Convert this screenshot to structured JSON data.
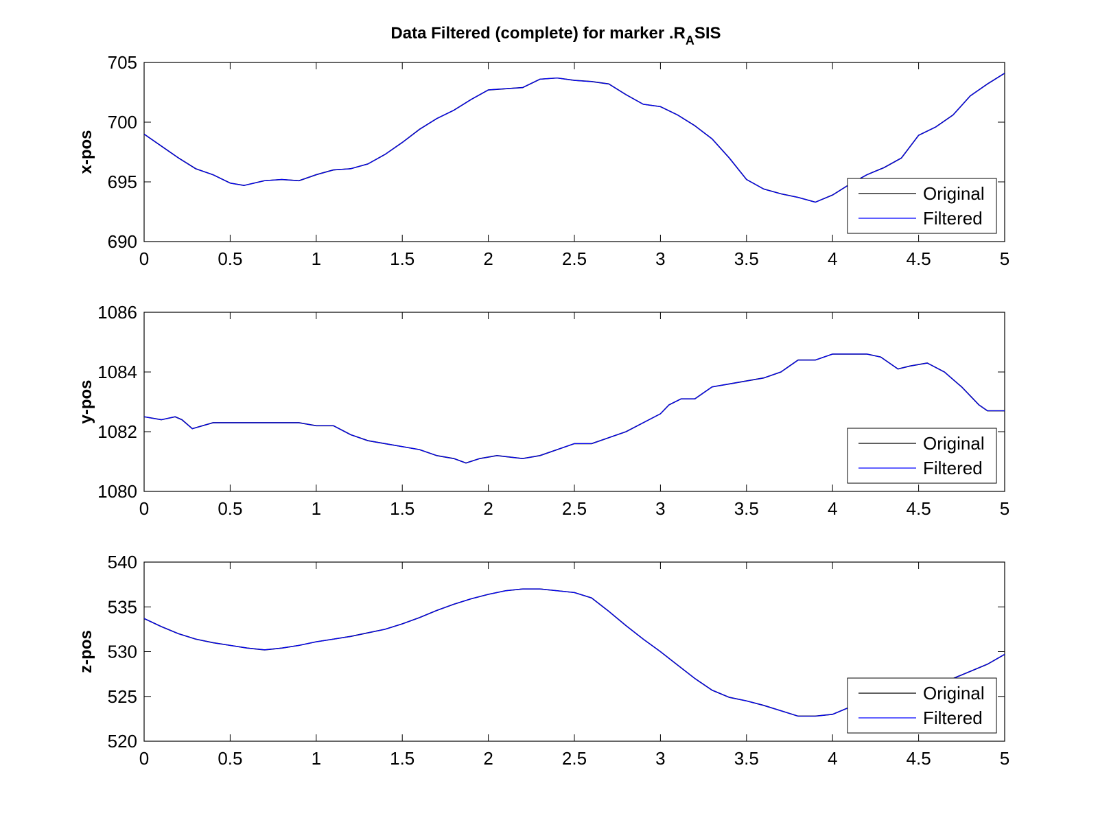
{
  "figure": {
    "title_main": "Data Filtered (complete) for marker .R",
    "title_sub": "A",
    "title_tail": "SIS"
  },
  "chart_data": [
    {
      "type": "line",
      "ylabel": "x-pos",
      "xlim": [
        0,
        5
      ],
      "ylim": [
        690,
        705
      ],
      "x_ticks": [
        0,
        0.5,
        1,
        1.5,
        2,
        2.5,
        3,
        3.5,
        4,
        4.5,
        5
      ],
      "y_ticks": [
        690,
        695,
        700,
        705
      ],
      "legend": {
        "position": "bottom-right",
        "entries": [
          "Original",
          "Filtered"
        ]
      },
      "series": [
        {
          "name": "Original",
          "color": "#000000",
          "x": [
            0,
            0.1,
            0.2,
            0.3,
            0.4,
            0.5,
            0.58,
            0.7,
            0.8,
            0.9,
            1.0,
            1.1,
            1.2,
            1.3,
            1.4,
            1.5,
            1.6,
            1.7,
            1.8,
            1.9,
            2.0,
            2.1,
            2.2,
            2.3,
            2.4,
            2.5,
            2.6,
            2.7,
            2.8,
            2.9,
            3.0,
            3.1,
            3.2,
            3.3,
            3.4,
            3.5,
            3.6,
            3.7,
            3.8,
            3.9,
            4.0,
            4.1,
            4.2,
            4.3,
            4.4,
            4.5,
            4.6,
            4.7,
            4.8,
            4.9,
            5.0
          ],
          "y": [
            699.0,
            698.0,
            697.0,
            696.1,
            695.6,
            694.9,
            694.7,
            695.1,
            695.2,
            695.1,
            695.6,
            696.0,
            696.1,
            696.5,
            697.3,
            698.3,
            699.4,
            700.3,
            701.0,
            701.9,
            702.7,
            702.8,
            702.9,
            703.6,
            703.7,
            703.5,
            703.4,
            703.2,
            702.3,
            701.5,
            701.3,
            700.6,
            699.7,
            698.6,
            697.0,
            695.2,
            694.4,
            694.0,
            693.7,
            693.3,
            693.9,
            694.8,
            695.6,
            696.2,
            697.0,
            698.9,
            699.6,
            700.6,
            702.2,
            703.2,
            704.1
          ]
        },
        {
          "name": "Filtered",
          "color": "#0000ff",
          "x": [
            0,
            0.1,
            0.2,
            0.3,
            0.4,
            0.5,
            0.58,
            0.7,
            0.8,
            0.9,
            1.0,
            1.1,
            1.2,
            1.3,
            1.4,
            1.5,
            1.6,
            1.7,
            1.8,
            1.9,
            2.0,
            2.1,
            2.2,
            2.3,
            2.4,
            2.5,
            2.6,
            2.7,
            2.8,
            2.9,
            3.0,
            3.1,
            3.2,
            3.3,
            3.4,
            3.5,
            3.6,
            3.7,
            3.8,
            3.9,
            4.0,
            4.1,
            4.2,
            4.3,
            4.4,
            4.5,
            4.6,
            4.7,
            4.8,
            4.9,
            5.0
          ],
          "y": [
            699.0,
            698.0,
            697.0,
            696.1,
            695.6,
            694.9,
            694.7,
            695.1,
            695.2,
            695.1,
            695.6,
            696.0,
            696.1,
            696.5,
            697.3,
            698.3,
            699.4,
            700.3,
            701.0,
            701.9,
            702.7,
            702.8,
            702.9,
            703.6,
            703.7,
            703.5,
            703.4,
            703.2,
            702.3,
            701.5,
            701.3,
            700.6,
            699.7,
            698.6,
            697.0,
            695.2,
            694.4,
            694.0,
            693.7,
            693.3,
            693.9,
            694.8,
            695.6,
            696.2,
            697.0,
            698.9,
            699.6,
            700.6,
            702.2,
            703.2,
            704.1
          ]
        }
      ]
    },
    {
      "type": "line",
      "ylabel": "y-pos",
      "xlim": [
        0,
        5
      ],
      "ylim": [
        1080,
        1086
      ],
      "x_ticks": [
        0,
        0.5,
        1,
        1.5,
        2,
        2.5,
        3,
        3.5,
        4,
        4.5,
        5
      ],
      "y_ticks": [
        1080,
        1082,
        1084,
        1086
      ],
      "legend": {
        "position": "bottom-right",
        "entries": [
          "Original",
          "Filtered"
        ]
      },
      "series": [
        {
          "name": "Original",
          "color": "#000000",
          "x": [
            0,
            0.1,
            0.18,
            0.22,
            0.28,
            0.4,
            0.5,
            0.6,
            0.7,
            0.8,
            0.9,
            1.0,
            1.1,
            1.2,
            1.3,
            1.4,
            1.5,
            1.6,
            1.7,
            1.8,
            1.87,
            1.95,
            2.05,
            2.2,
            2.3,
            2.4,
            2.5,
            2.6,
            2.7,
            2.8,
            2.9,
            3.0,
            3.05,
            3.12,
            3.2,
            3.3,
            3.4,
            3.5,
            3.6,
            3.7,
            3.8,
            3.9,
            4.0,
            4.1,
            4.2,
            4.28,
            4.38,
            4.45,
            4.55,
            4.65,
            4.75,
            4.85,
            4.9,
            5.0
          ],
          "y": [
            1082.5,
            1082.4,
            1082.5,
            1082.4,
            1082.1,
            1082.3,
            1082.3,
            1082.3,
            1082.3,
            1082.3,
            1082.3,
            1082.2,
            1082.2,
            1081.9,
            1081.7,
            1081.6,
            1081.5,
            1081.4,
            1081.2,
            1081.1,
            1080.95,
            1081.1,
            1081.2,
            1081.1,
            1081.2,
            1081.4,
            1081.6,
            1081.6,
            1081.8,
            1082.0,
            1082.3,
            1082.6,
            1082.9,
            1083.1,
            1083.1,
            1083.5,
            1083.6,
            1083.7,
            1083.8,
            1084.0,
            1084.4,
            1084.4,
            1084.6,
            1084.6,
            1084.6,
            1084.5,
            1084.1,
            1084.2,
            1084.3,
            1084.0,
            1083.5,
            1082.9,
            1082.7,
            1082.7
          ]
        },
        {
          "name": "Filtered",
          "color": "#0000ff",
          "x": [
            0,
            0.1,
            0.18,
            0.22,
            0.28,
            0.4,
            0.5,
            0.6,
            0.7,
            0.8,
            0.9,
            1.0,
            1.1,
            1.2,
            1.3,
            1.4,
            1.5,
            1.6,
            1.7,
            1.8,
            1.87,
            1.95,
            2.05,
            2.2,
            2.3,
            2.4,
            2.5,
            2.6,
            2.7,
            2.8,
            2.9,
            3.0,
            3.05,
            3.12,
            3.2,
            3.3,
            3.4,
            3.5,
            3.6,
            3.7,
            3.8,
            3.9,
            4.0,
            4.1,
            4.2,
            4.28,
            4.38,
            4.45,
            4.55,
            4.65,
            4.75,
            4.85,
            4.9,
            5.0
          ],
          "y": [
            1082.5,
            1082.4,
            1082.5,
            1082.4,
            1082.1,
            1082.3,
            1082.3,
            1082.3,
            1082.3,
            1082.3,
            1082.3,
            1082.2,
            1082.2,
            1081.9,
            1081.7,
            1081.6,
            1081.5,
            1081.4,
            1081.2,
            1081.1,
            1080.95,
            1081.1,
            1081.2,
            1081.1,
            1081.2,
            1081.4,
            1081.6,
            1081.6,
            1081.8,
            1082.0,
            1082.3,
            1082.6,
            1082.9,
            1083.1,
            1083.1,
            1083.5,
            1083.6,
            1083.7,
            1083.8,
            1084.0,
            1084.4,
            1084.4,
            1084.6,
            1084.6,
            1084.6,
            1084.5,
            1084.1,
            1084.2,
            1084.3,
            1084.0,
            1083.5,
            1082.9,
            1082.7,
            1082.7
          ]
        }
      ]
    },
    {
      "type": "line",
      "ylabel": "z-pos",
      "xlim": [
        0,
        5
      ],
      "ylim": [
        520,
        540
      ],
      "x_ticks": [
        0,
        0.5,
        1,
        1.5,
        2,
        2.5,
        3,
        3.5,
        4,
        4.5,
        5
      ],
      "y_ticks": [
        520,
        525,
        530,
        535,
        540
      ],
      "legend": {
        "position": "bottom-right",
        "entries": [
          "Original",
          "Filtered"
        ]
      },
      "series": [
        {
          "name": "Original",
          "color": "#000000",
          "x": [
            0,
            0.1,
            0.2,
            0.3,
            0.4,
            0.5,
            0.6,
            0.7,
            0.8,
            0.9,
            1.0,
            1.1,
            1.2,
            1.3,
            1.4,
            1.5,
            1.6,
            1.7,
            1.8,
            1.9,
            2.0,
            2.1,
            2.2,
            2.3,
            2.4,
            2.5,
            2.6,
            2.7,
            2.8,
            2.9,
            3.0,
            3.1,
            3.2,
            3.3,
            3.4,
            3.5,
            3.6,
            3.7,
            3.8,
            3.9,
            4.0,
            4.1,
            4.2,
            4.3,
            4.4,
            4.5,
            4.6,
            4.7,
            4.8,
            4.9,
            5.0
          ],
          "y": [
            533.7,
            532.8,
            532.0,
            531.4,
            531.0,
            530.7,
            530.4,
            530.2,
            530.4,
            530.7,
            531.1,
            531.4,
            531.7,
            532.1,
            532.5,
            533.1,
            533.8,
            534.6,
            535.3,
            535.9,
            536.4,
            536.8,
            537.0,
            537.0,
            536.8,
            536.6,
            536.0,
            534.5,
            532.9,
            531.4,
            530.0,
            528.5,
            527.0,
            525.7,
            524.9,
            524.5,
            524.0,
            523.4,
            522.8,
            522.8,
            523.0,
            523.8,
            524.8,
            525.7,
            526.1,
            526.2,
            526.4,
            527.0,
            527.8,
            528.6,
            529.7
          ]
        },
        {
          "name": "Filtered",
          "color": "#0000ff",
          "x": [
            0,
            0.1,
            0.2,
            0.3,
            0.4,
            0.5,
            0.6,
            0.7,
            0.8,
            0.9,
            1.0,
            1.1,
            1.2,
            1.3,
            1.4,
            1.5,
            1.6,
            1.7,
            1.8,
            1.9,
            2.0,
            2.1,
            2.2,
            2.3,
            2.4,
            2.5,
            2.6,
            2.7,
            2.8,
            2.9,
            3.0,
            3.1,
            3.2,
            3.3,
            3.4,
            3.5,
            3.6,
            3.7,
            3.8,
            3.9,
            4.0,
            4.1,
            4.2,
            4.3,
            4.4,
            4.5,
            4.6,
            4.7,
            4.8,
            4.9,
            5.0
          ],
          "y": [
            533.7,
            532.8,
            532.0,
            531.4,
            531.0,
            530.7,
            530.4,
            530.2,
            530.4,
            530.7,
            531.1,
            531.4,
            531.7,
            532.1,
            532.5,
            533.1,
            533.8,
            534.6,
            535.3,
            535.9,
            536.4,
            536.8,
            537.0,
            537.0,
            536.8,
            536.6,
            536.0,
            534.5,
            532.9,
            531.4,
            530.0,
            528.5,
            527.0,
            525.7,
            524.9,
            524.5,
            524.0,
            523.4,
            522.8,
            522.8,
            523.0,
            523.8,
            524.8,
            525.7,
            526.1,
            526.2,
            526.4,
            527.0,
            527.8,
            528.6,
            529.7
          ]
        }
      ]
    }
  ]
}
